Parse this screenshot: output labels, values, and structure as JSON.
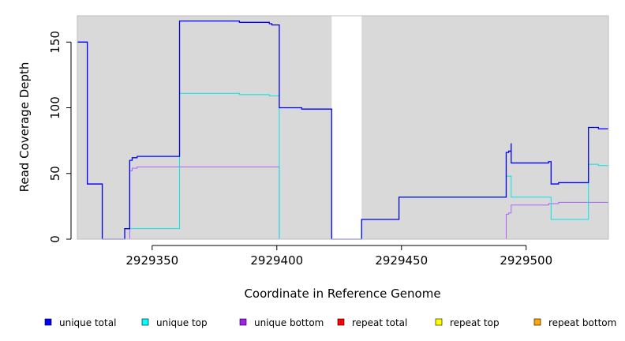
{
  "chart_data": {
    "type": "line",
    "style": "step",
    "xlabel": "Coordinate in Reference Genome",
    "ylabel": "Read Coverage Depth",
    "xlim": [
      2929320,
      2929533
    ],
    "ylim": [
      0,
      170
    ],
    "xticks": [
      2929350,
      2929400,
      2929450,
      2929500
    ],
    "yticks": [
      0,
      50,
      100,
      150
    ],
    "plot_background": "#d9d9d9",
    "gap": {
      "x": [
        2929422,
        2929434
      ],
      "color": "#ffffff"
    },
    "series": [
      {
        "name": "unique total",
        "color": "#0000ff",
        "legend_color": "#0000ff",
        "x": [
          2929320,
          2929324,
          2929324,
          2929330,
          2929330,
          2929339,
          2929339,
          2929341,
          2929341,
          2929342,
          2929342,
          2929343,
          2929343,
          2929344,
          2929344,
          2929361,
          2929361,
          2929385,
          2929385,
          2929397,
          2929397,
          2929398,
          2929398,
          2929401,
          2929401,
          2929410,
          2929410,
          2929422,
          2929422,
          2929434,
          2929434,
          2929449,
          2929449,
          2929492,
          2929492,
          2929493,
          2929493,
          2929494,
          2929494,
          2929494,
          2929494,
          2929509,
          2929509,
          2929510,
          2929510,
          2929512,
          2929512,
          2929513,
          2929513,
          2929525,
          2929525,
          2929529,
          2929529,
          2929533
        ],
        "y": [
          150,
          150,
          42,
          42,
          0,
          0,
          8,
          8,
          60,
          60,
          62,
          62,
          62,
          62,
          63,
          63,
          166,
          166,
          165,
          165,
          164,
          164,
          163,
          163,
          100,
          100,
          99,
          99,
          0,
          0,
          15,
          15,
          32,
          32,
          66,
          66,
          67,
          67,
          73,
          73,
          58,
          58,
          59,
          59,
          42,
          42,
          42,
          42,
          43,
          43,
          85,
          85,
          84,
          84
        ]
      },
      {
        "name": "unique top",
        "color": "#00e5e5",
        "legend_color": "#00ffff",
        "x": [
          2929320,
          2929339,
          2929339,
          2929361,
          2929361,
          2929385,
          2929385,
          2929397,
          2929397,
          2929401,
          2929401,
          2929422,
          2929422,
          2929434,
          2929434,
          2929449,
          2929449,
          2929492,
          2929492,
          2929494,
          2929494,
          2929510,
          2929510,
          2929525,
          2929525,
          2929529,
          2929529,
          2929533
        ],
        "y": [
          0,
          0,
          8,
          8,
          111,
          111,
          110,
          110,
          109,
          109,
          0,
          0,
          0,
          0,
          15,
          15,
          32,
          32,
          48,
          48,
          32,
          32,
          15,
          15,
          57,
          57,
          56,
          56
        ]
      },
      {
        "name": "unique bottom",
        "color": "#b060ff",
        "legend_color": "#a020f0",
        "x": [
          2929320,
          2929324,
          2929324,
          2929330,
          2929330,
          2929341,
          2929341,
          2929342,
          2929342,
          2929344,
          2929344,
          2929401,
          2929401,
          2929492,
          2929492,
          2929493,
          2929493,
          2929494,
          2929494,
          2929509,
          2929509,
          2929513,
          2929513,
          2929533
        ],
        "y": [
          150,
          150,
          42,
          42,
          0,
          0,
          52,
          52,
          54,
          54,
          55,
          55,
          0,
          0,
          19,
          19,
          20,
          20,
          26,
          26,
          27,
          27,
          28,
          28
        ]
      },
      {
        "name": "repeat total",
        "color": "#ff0000",
        "legend_color": "#ff0000",
        "x": [
          2929320,
          2929533
        ],
        "y": [
          0,
          0
        ]
      },
      {
        "name": "repeat top",
        "color": "#ffff00",
        "legend_color": "#ffff00",
        "x": [
          2929320,
          2929533
        ],
        "y": [
          0,
          0
        ]
      },
      {
        "name": "repeat bottom",
        "color": "#ffa500",
        "legend_color": "#ffa500",
        "x": [
          2929320,
          2929533
        ],
        "y": [
          0,
          0
        ]
      }
    ]
  }
}
